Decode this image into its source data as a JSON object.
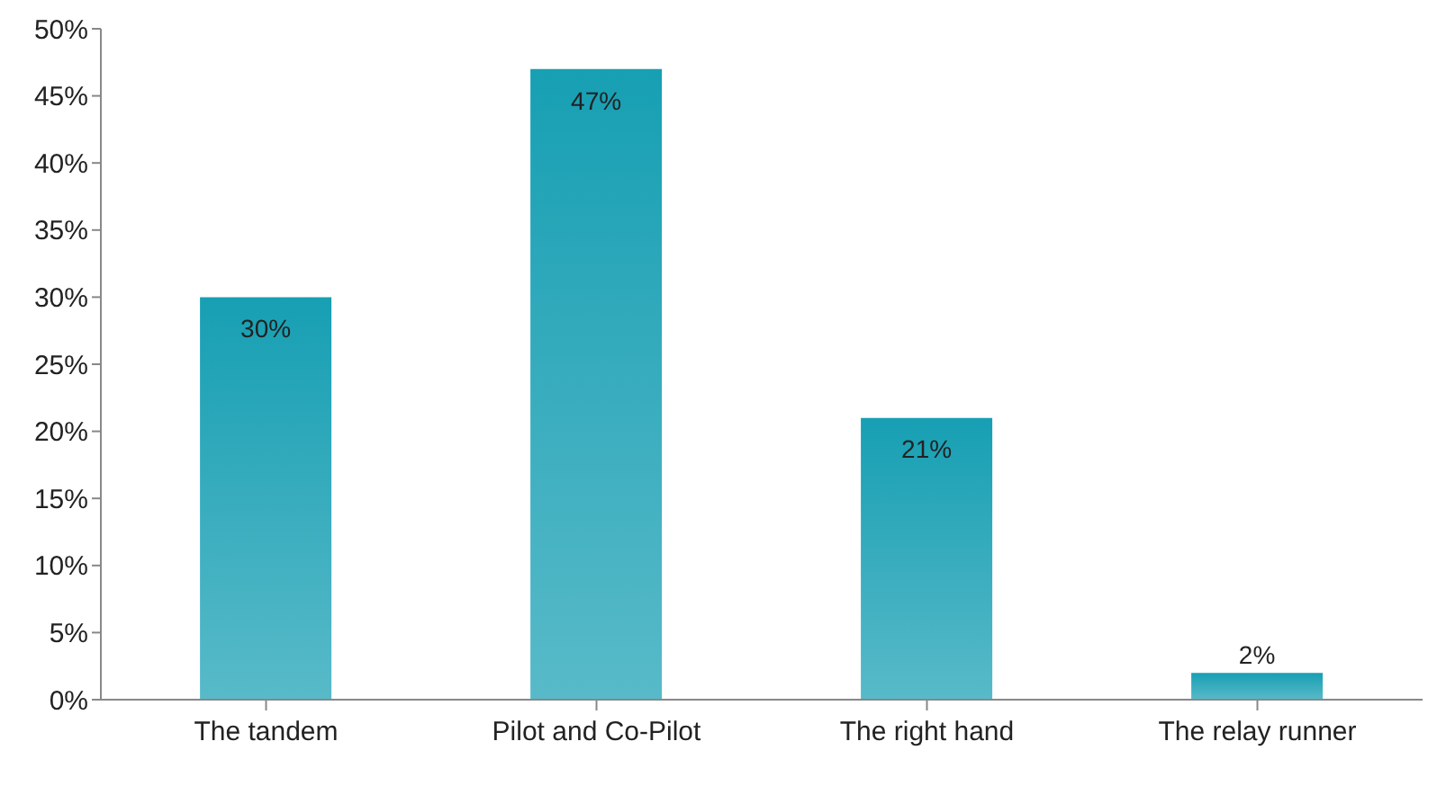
{
  "chart_data": {
    "type": "bar",
    "categories": [
      "The tandem",
      "Pilot and Co-Pilot",
      "The right hand",
      "The relay runner"
    ],
    "values": [
      30,
      47,
      21,
      2
    ],
    "value_labels": [
      "30%",
      "47%",
      "21%",
      "2%"
    ],
    "color": "#179fb3",
    "ylim": [
      0,
      50
    ],
    "yticks": [
      {
        "value": 0,
        "label": "0%"
      },
      {
        "value": 5,
        "label": "5%"
      },
      {
        "value": 10,
        "label": "10%"
      },
      {
        "value": 15,
        "label": "15%"
      },
      {
        "value": 20,
        "label": "20%"
      },
      {
        "value": 25,
        "label": "25%"
      },
      {
        "value": 30,
        "label": "30%"
      },
      {
        "value": 35,
        "label": "35%"
      },
      {
        "value": 40,
        "label": "40%"
      },
      {
        "value": 45,
        "label": "45%"
      },
      {
        "value": 50,
        "label": "50%"
      }
    ],
    "grid": false
  }
}
